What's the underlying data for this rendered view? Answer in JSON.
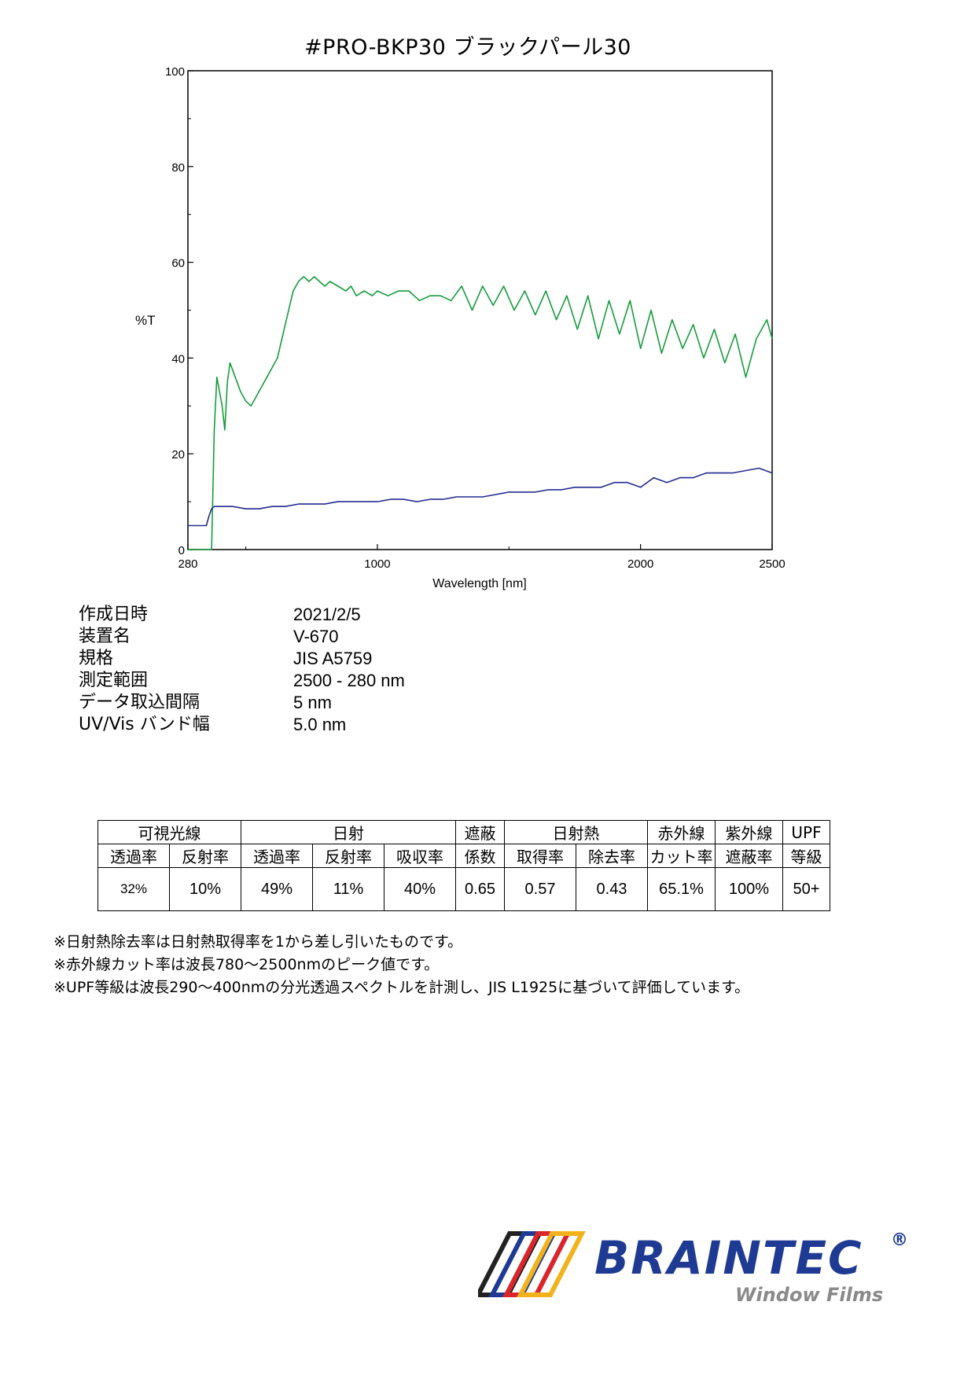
{
  "title": "#PRO-BKP30  ブラックパール30",
  "chart_data": {
    "type": "line",
    "xlabel": "Wavelength [nm]",
    "ylabel": "%T",
    "xlim": [
      280,
      2500
    ],
    "ylim": [
      0,
      100
    ],
    "x_ticks": [
      "280",
      "1000",
      "2000",
      "2500"
    ],
    "y_ticks": [
      "0",
      "20",
      "40",
      "60",
      "80",
      "100"
    ],
    "grid": false,
    "series": [
      {
        "color": "#169c3c",
        "x": [
          280,
          370,
          380,
          390,
          400,
          410,
          420,
          430,
          440,
          460,
          480,
          500,
          520,
          540,
          560,
          580,
          600,
          620,
          650,
          680,
          700,
          720,
          740,
          760,
          780,
          800,
          820,
          850,
          880,
          900,
          920,
          950,
          980,
          1000,
          1040,
          1080,
          1120,
          1160,
          1200,
          1240,
          1280,
          1320,
          1360,
          1400,
          1440,
          1480,
          1520,
          1560,
          1600,
          1640,
          1680,
          1720,
          1760,
          1800,
          1840,
          1880,
          1920,
          1960,
          2000,
          2040,
          2080,
          2120,
          2160,
          2200,
          2240,
          2280,
          2320,
          2360,
          2400,
          2440,
          2480,
          2500
        ],
        "values": [
          0,
          0,
          25,
          36,
          33,
          30,
          25,
          35,
          39,
          36,
          33,
          31,
          30,
          32,
          34,
          36,
          38,
          40,
          47,
          54,
          56,
          57,
          56,
          57,
          56,
          55,
          56,
          55,
          54,
          55,
          53,
          54,
          53,
          54,
          53,
          54,
          54,
          52,
          53,
          53,
          52,
          55,
          50,
          55,
          51,
          55,
          50,
          54,
          49,
          54,
          48,
          53,
          46,
          53,
          44,
          52,
          45,
          52,
          42,
          50,
          41,
          48,
          42,
          47,
          40,
          46,
          39,
          45,
          36,
          44,
          48,
          44
        ]
      },
      {
        "color": "#242a8f",
        "x": [
          280,
          340,
          350,
          360,
          370,
          380,
          400,
          450,
          500,
          550,
          600,
          650,
          700,
          750,
          800,
          850,
          900,
          950,
          1000,
          1050,
          1100,
          1150,
          1200,
          1250,
          1300,
          1350,
          1400,
          1450,
          1500,
          1550,
          1600,
          1650,
          1700,
          1750,
          1800,
          1850,
          1900,
          1950,
          2000,
          2050,
          2100,
          2150,
          2200,
          2250,
          2300,
          2350,
          2400,
          2450,
          2500
        ],
        "values": [
          5,
          5,
          5,
          7,
          8.5,
          9,
          9,
          9,
          8.5,
          8.5,
          9,
          9,
          9.5,
          9.5,
          9.5,
          10,
          10,
          10,
          10,
          10.5,
          10.5,
          10,
          10.5,
          10.5,
          11,
          11,
          11,
          11.5,
          12,
          12,
          12,
          12.5,
          12.5,
          13,
          13,
          13,
          14,
          14,
          13,
          15,
          14,
          15,
          15,
          16,
          16,
          16,
          16.5,
          17,
          16
        ]
      }
    ]
  },
  "meta": [
    {
      "label": "作成日時",
      "value": "2021/2/5"
    },
    {
      "label": "装置名",
      "value": "V-670"
    },
    {
      "label": "規格",
      "value": "JIS A5759"
    },
    {
      "label": "測定範囲",
      "value": "2500 - 280 nm"
    },
    {
      "label": "データ取込間隔",
      "value": "5 nm"
    },
    {
      "label": "UV/Vis バンド幅",
      "value": "5.0 nm"
    }
  ],
  "table": {
    "group_headers": [
      "可視光線",
      "日射",
      "遮蔽",
      "日射熱",
      "赤外線",
      "紫外線",
      "UPF"
    ],
    "sub_headers": [
      "透過率",
      "反射率",
      "透過率",
      "反射率",
      "吸収率",
      "係数",
      "取得率",
      "除去率",
      "カット率",
      "遮蔽率",
      "等級"
    ],
    "values": [
      "32%",
      "10%",
      "49%",
      "11%",
      "40%",
      "0.65",
      "0.57",
      "0.43",
      "65.1%",
      "100%",
      "50+"
    ]
  },
  "notes": [
    "※日射熱除去率は日射熱取得率を1から差し引いたものです。",
    "※赤外線カット率は波長780～2500nmのピーク値です。",
    "※UPF等級は波長290～400nmの分光透過スペクトルを計測し、JIS L1925に基づいて評価しています。"
  ],
  "brand": {
    "name": "BRAINTEC",
    "registered": "®",
    "subtitle": "Window Films",
    "colors": {
      "primary": "#1f3a93",
      "stripe_black": "#222222",
      "stripe_blue": "#1f3a93",
      "stripe_red": "#d9262c",
      "stripe_yellow": "#f2b21b"
    }
  }
}
